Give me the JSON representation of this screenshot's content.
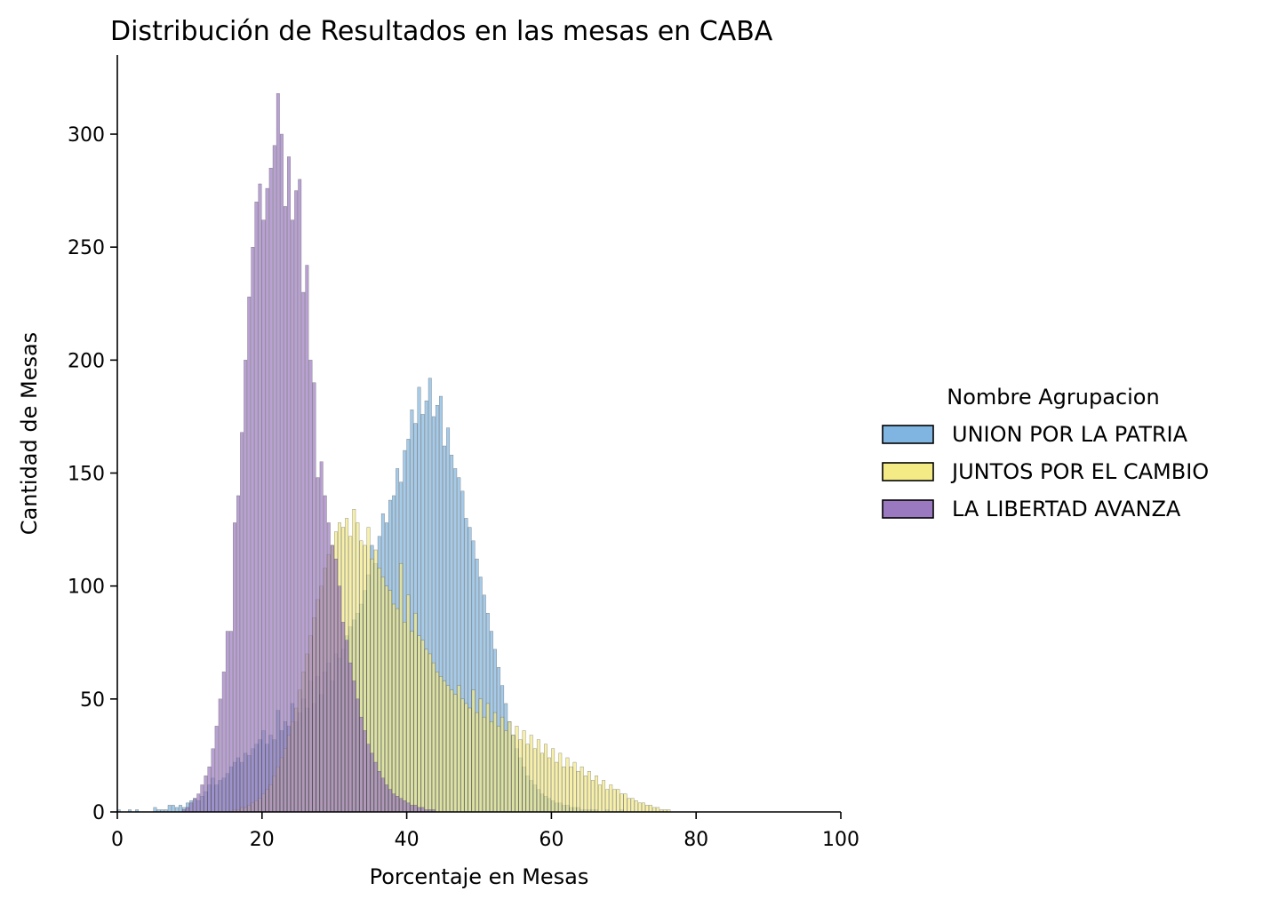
{
  "chart_data": {
    "type": "bar",
    "subtype": "overlaid histogram",
    "title": "Distribución de Resultados en las mesas en CABA",
    "xlabel": "Porcentaje en Mesas",
    "ylabel": "Cantidad de Mesas",
    "xlim": [
      0,
      100
    ],
    "ylim": [
      0,
      335
    ],
    "xticks": [
      "0",
      "20",
      "40",
      "60",
      "80",
      "100"
    ],
    "yticks": [
      "0",
      "50",
      "100",
      "150",
      "200",
      "250",
      "300"
    ],
    "x_tick_values": [
      0,
      20,
      40,
      60,
      80,
      100
    ],
    "y_tick_values": [
      0,
      50,
      100,
      150,
      200,
      250,
      300
    ],
    "bin_width": 0.5,
    "grid": false,
    "legend": {
      "title": "Nombre Agrupacion",
      "placement": "right"
    },
    "series": [
      {
        "name": "UNION POR LA PATRIA",
        "color": "#7fb5e0",
        "bin_start": 0,
        "counts": [
          1,
          0,
          0,
          1,
          0,
          1,
          0,
          0,
          0,
          0,
          2,
          1,
          1,
          1,
          3,
          3,
          2,
          3,
          2,
          4,
          5,
          6,
          5,
          7,
          9,
          12,
          15,
          12,
          14,
          15,
          17,
          20,
          22,
          24,
          22,
          26,
          25,
          28,
          30,
          32,
          36,
          30,
          34,
          32,
          45,
          36,
          40,
          38,
          48,
          40,
          44,
          50,
          46,
          58,
          48,
          60,
          52,
          62,
          66,
          58,
          70,
          68,
          72,
          78,
          82,
          85,
          88,
          92,
          98,
          105,
          118,
          110,
          122,
          132,
          128,
          138,
          140,
          152,
          146,
          160,
          165,
          178,
          172,
          188,
          176,
          182,
          192,
          175,
          180,
          184,
          162,
          170,
          158,
          152,
          148,
          142,
          130,
          126,
          120,
          112,
          104,
          96,
          88,
          80,
          72,
          64,
          56,
          48,
          40,
          34,
          28,
          24,
          20,
          16,
          14,
          12,
          10,
          8,
          7,
          6,
          5,
          4,
          4,
          3,
          3,
          2,
          2,
          2,
          1,
          1,
          1,
          1,
          1,
          0,
          0,
          1,
          0,
          0,
          0,
          1,
          0,
          0,
          0,
          0,
          0,
          0,
          0,
          0,
          0,
          0,
          0,
          0,
          0,
          0,
          0,
          0,
          0,
          0,
          0,
          0,
          0
        ]
      },
      {
        "name": "JUNTOS POR EL CAMBIO",
        "color": "#f4ea86",
        "bin_start": 16,
        "counts": [
          1,
          1,
          2,
          2,
          3,
          4,
          5,
          6,
          8,
          10,
          12,
          16,
          20,
          24,
          28,
          34,
          40,
          46,
          54,
          62,
          70,
          78,
          86,
          94,
          100,
          108,
          114,
          118,
          124,
          128,
          126,
          130,
          122,
          134,
          128,
          120,
          118,
          126,
          112,
          116,
          108,
          104,
          100,
          98,
          92,
          90,
          110,
          84,
          96,
          80,
          88,
          78,
          76,
          72,
          70,
          66,
          62,
          60,
          58,
          56,
          54,
          52,
          56,
          50,
          48,
          46,
          54,
          44,
          50,
          42,
          48,
          40,
          44,
          38,
          42,
          36,
          40,
          34,
          38,
          32,
          36,
          30,
          34,
          28,
          32,
          26,
          30,
          24,
          28,
          22,
          26,
          20,
          24,
          20,
          22,
          18,
          20,
          16,
          18,
          14,
          16,
          12,
          14,
          10,
          12,
          10,
          10,
          8,
          8,
          6,
          6,
          5,
          4,
          4,
          3,
          3,
          2,
          2,
          1,
          1,
          1
        ]
      },
      {
        "name": "LA LIBERTAD AVANZA",
        "color": "#9b79c0",
        "bin_start": 0,
        "counts": [
          0,
          0,
          0,
          0,
          0,
          0,
          0,
          0,
          0,
          0,
          0,
          0,
          0,
          0,
          0,
          0,
          0,
          0,
          1,
          2,
          4,
          6,
          8,
          12,
          16,
          20,
          28,
          38,
          50,
          62,
          80,
          80,
          128,
          140,
          168,
          200,
          228,
          250,
          270,
          278,
          262,
          276,
          285,
          295,
          318,
          300,
          268,
          290,
          262,
          275,
          280,
          230,
          242,
          200,
          190,
          148,
          155,
          140,
          128,
          118,
          112,
          100,
          84,
          76,
          66,
          58,
          50,
          42,
          36,
          30,
          26,
          22,
          18,
          15,
          12,
          10,
          8,
          7,
          6,
          5,
          4,
          3,
          3,
          2,
          2,
          1,
          1,
          1,
          0,
          0,
          0,
          0
        ]
      }
    ]
  }
}
